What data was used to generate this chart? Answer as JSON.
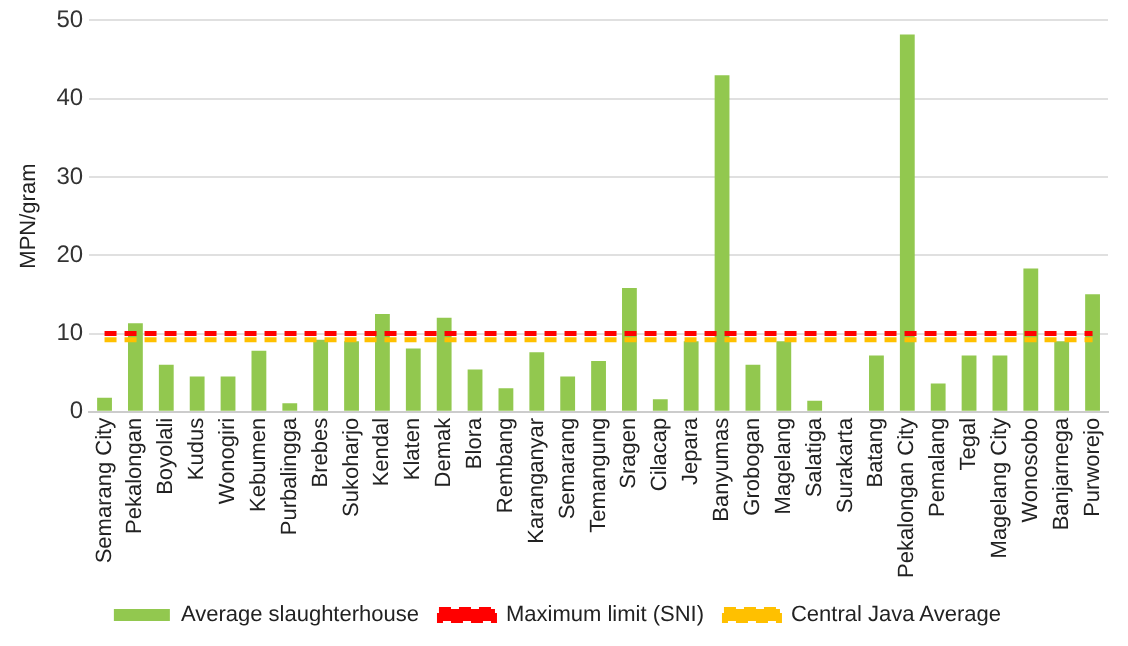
{
  "chart_data": {
    "type": "bar",
    "ylabel": "MPN/gram",
    "categories": [
      "Semarang City",
      "Pekalongan",
      "Boyolali",
      "Kudus",
      "Wonogiri",
      "Kebumen",
      "Purbalingga",
      "Brebes",
      "Sukoharjo",
      "Kendal",
      "Klaten",
      "Demak",
      "Blora",
      "Rembang",
      "Karanganyar",
      "Semarang",
      "Temangung",
      "Sragen",
      "Cilacap",
      "Jepara",
      "Banyumas",
      "Grobogan",
      "Magelang",
      "Salatiga",
      "Surakarta",
      "Batang",
      "Pekalongan City",
      "Pemalang",
      "Tegal",
      "Magelang City",
      "Wonosobo",
      "Banjarnega",
      "Purworejo"
    ],
    "series": [
      {
        "name": "Average slaughterhouse",
        "color": "#92c84f",
        "values": [
          1.8,
          11.3,
          6,
          4.5,
          4.5,
          7.8,
          1.1,
          9.2,
          9,
          12.5,
          8.1,
          12,
          5.4,
          3,
          7.6,
          4.5,
          6.5,
          15.8,
          1.6,
          9,
          43,
          6,
          9,
          1.4,
          0,
          7.2,
          48.2,
          3.6,
          7.2,
          7.2,
          18.3,
          9,
          15
        ]
      },
      {
        "name": "Maximum limit (SNI)",
        "type": "line",
        "line_style": "dashed",
        "color": "#ff0000",
        "values": [
          10,
          10,
          10,
          10,
          10,
          10,
          10,
          10,
          10,
          10,
          10,
          10,
          10,
          10,
          10,
          10,
          10,
          10,
          10,
          10,
          10,
          10,
          10,
          10,
          10,
          10,
          10,
          10,
          10,
          10,
          10,
          10,
          10
        ]
      },
      {
        "name": "Central Java Average",
        "type": "line",
        "line_style": "dashed",
        "color": "#ffc000",
        "values": [
          9.2,
          9.2,
          9.2,
          9.2,
          9.2,
          9.2,
          9.2,
          9.2,
          9.2,
          9.2,
          9.2,
          9.2,
          9.2,
          9.2,
          9.2,
          9.2,
          9.2,
          9.2,
          9.2,
          9.2,
          9.2,
          9.2,
          9.2,
          9.2,
          9.2,
          9.2,
          9.2,
          9.2,
          9.2,
          9.2,
          9.2,
          9.2,
          9.2
        ]
      }
    ],
    "ylim": [
      0,
      50
    ],
    "yticks": [
      0,
      10,
      20,
      30,
      40,
      50
    ],
    "grid": "y",
    "legend": "bottom"
  }
}
